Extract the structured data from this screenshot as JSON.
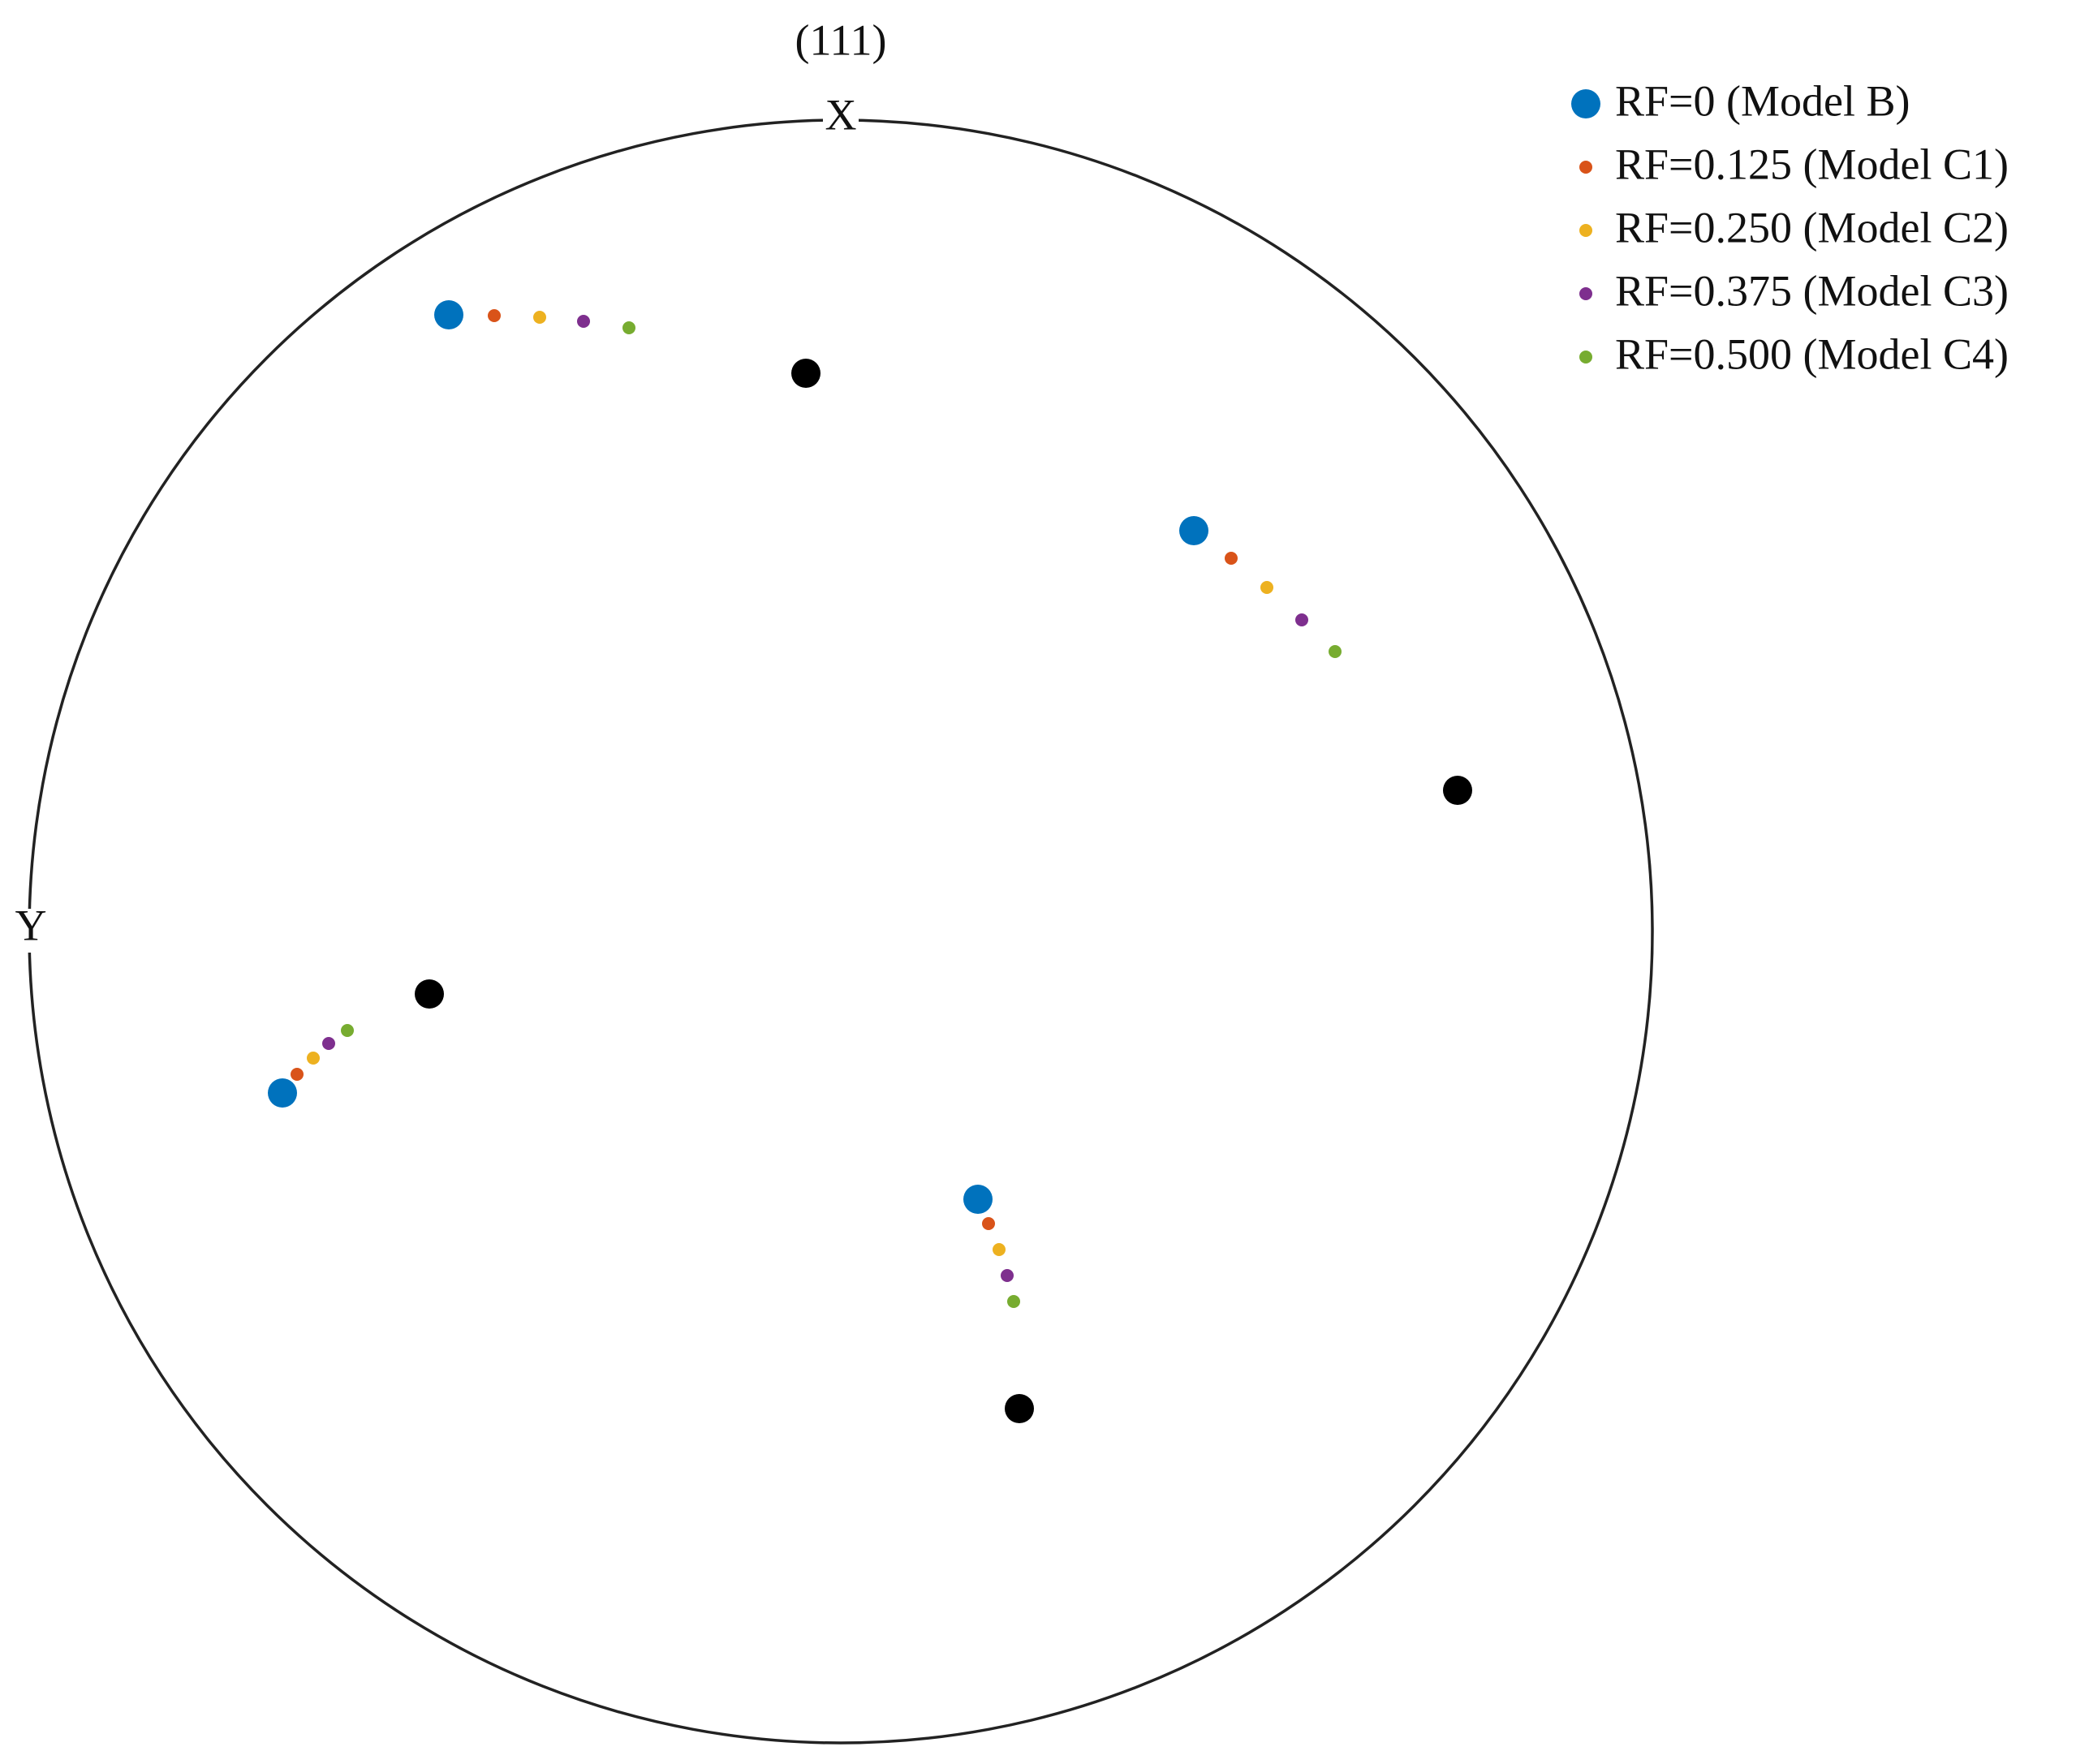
{
  "chart_data": {
    "type": "pole_figure",
    "title": "(111)",
    "x_label": "X",
    "y_label": "Y",
    "xlim": [
      -1,
      1
    ],
    "ylim": [
      -1,
      1
    ],
    "series": [
      {
        "name": "RF=0 (Model B)",
        "color": "#0072bd",
        "marker_size": 18,
        "x": [
          -0.483,
          0.435,
          -0.688,
          0.169
        ],
        "y": [
          0.76,
          0.494,
          -0.199,
          -0.33
        ]
      },
      {
        "name": "RF=0.125 (Model C1)",
        "color": "#d95319",
        "marker_size": 8,
        "x": [
          -0.427,
          0.481,
          -0.67,
          0.182
        ],
        "y": [
          0.759,
          0.46,
          -0.176,
          -0.36
        ]
      },
      {
        "name": "RF=0.250 (Model C2)",
        "color": "#edb120",
        "marker_size": 8,
        "x": [
          -0.371,
          0.525,
          -0.65,
          0.195
        ],
        "y": [
          0.757,
          0.424,
          -0.156,
          -0.392
        ]
      },
      {
        "name": "RF=0.375 (Model C3)",
        "color": "#7e2f8e",
        "marker_size": 8,
        "x": [
          -0.317,
          0.568,
          -0.631,
          0.205
        ],
        "y": [
          0.752,
          0.384,
          -0.138,
          -0.424
        ]
      },
      {
        "name": "RF=0.500 (Model C4)",
        "color": "#77ac30",
        "marker_size": 8,
        "x": [
          -0.261,
          0.609,
          -0.608,
          0.213
        ],
        "y": [
          0.744,
          0.345,
          -0.122,
          -0.456
        ]
      },
      {
        "color": "#000000",
        "marker_size": 18,
        "x": [
          -0.043,
          0.76,
          -0.507,
          0.22
        ],
        "y": [
          0.688,
          0.174,
          -0.077,
          -0.588
        ]
      }
    ]
  }
}
